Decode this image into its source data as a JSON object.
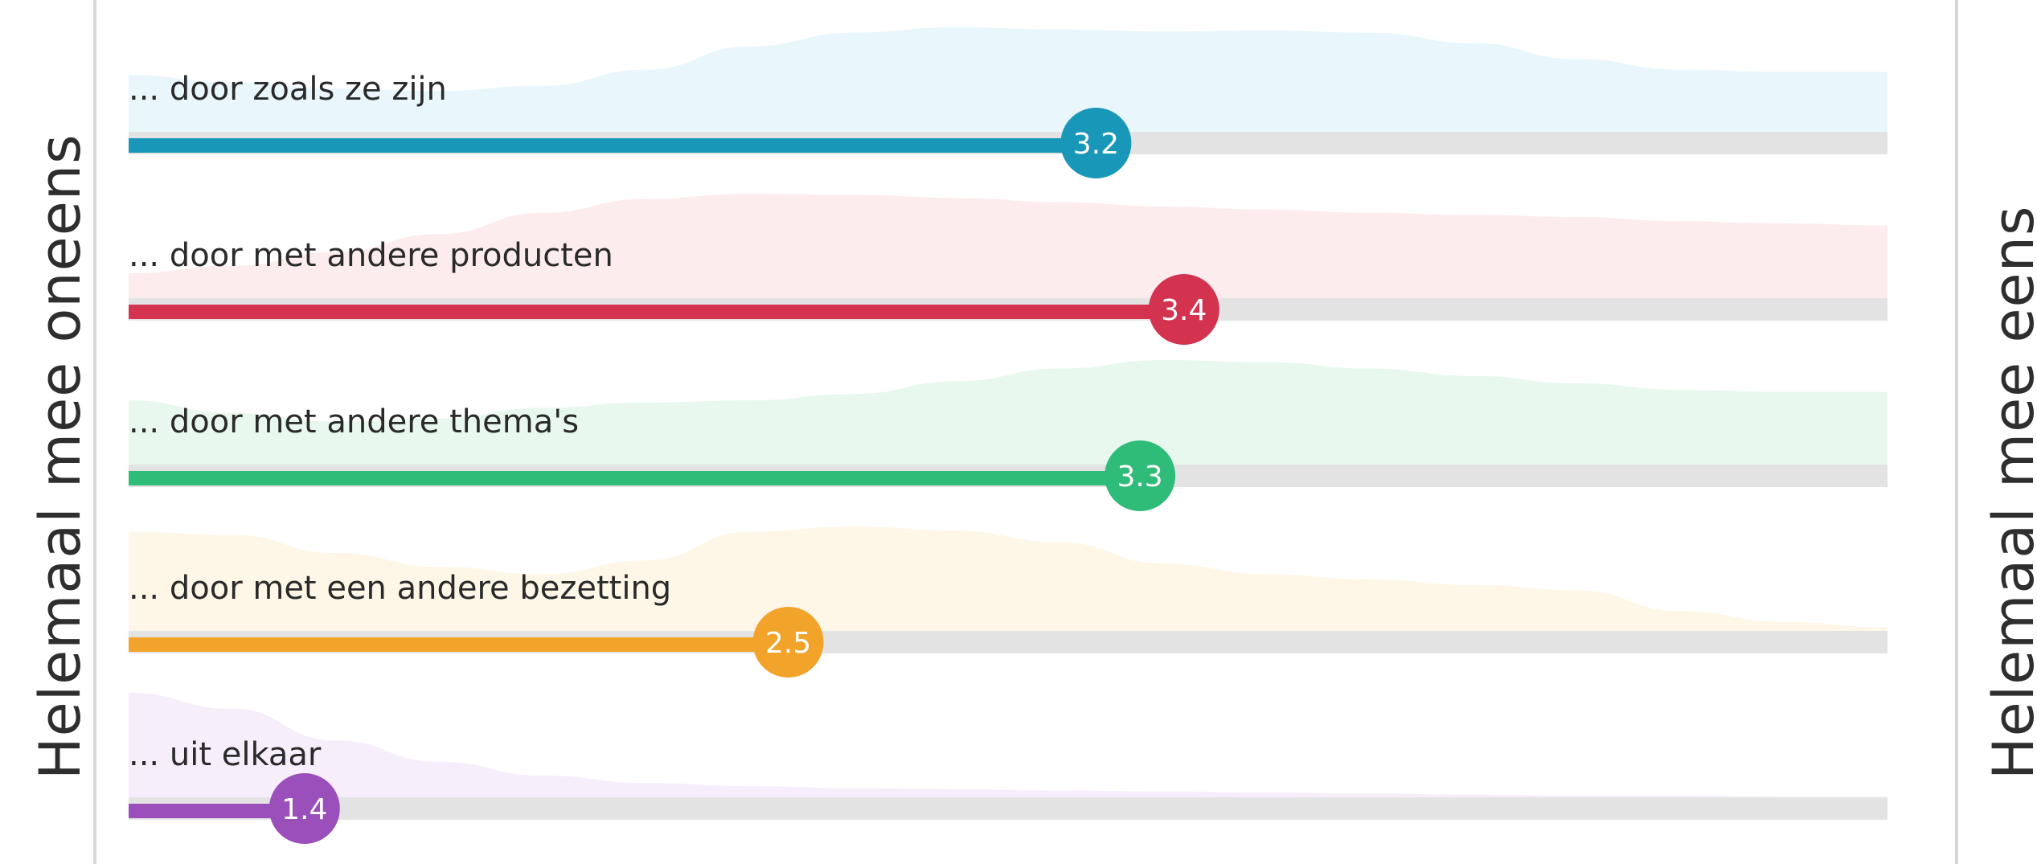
{
  "chart_data": {
    "type": "bar",
    "orientation": "horizontal",
    "scale": {
      "min": 1,
      "max": 5
    },
    "left_label": "Helemaal mee oneens",
    "right_label": "Helemaal mee eens",
    "grid": false,
    "legend": "none",
    "items": [
      {
        "label": "... door zoals ze zijn",
        "value": 3.2,
        "value_label": "3.2",
        "color": "#1997b8",
        "fill": "#e9f6fb",
        "distribution": [
          0.55,
          0.48,
          0.42,
          0.4,
          0.45,
          0.6,
          0.82,
          0.95,
          1.0,
          0.98,
          0.96,
          0.97,
          0.95,
          0.85,
          0.7,
          0.6,
          0.58,
          0.58
        ]
      },
      {
        "label": "... door met andere producten",
        "value": 3.4,
        "value_label": "3.4",
        "color": "#d43350",
        "fill": "#fdecee",
        "distribution": [
          0.25,
          0.32,
          0.45,
          0.62,
          0.82,
          0.95,
          1.0,
          0.99,
          0.96,
          0.92,
          0.88,
          0.85,
          0.82,
          0.8,
          0.78,
          0.74,
          0.72,
          0.7
        ]
      },
      {
        "label": "... door met andere thema's",
        "value": 3.3,
        "value_label": "3.3",
        "color": "#2fbb78",
        "fill": "#e9f8ef",
        "distribution": [
          0.62,
          0.5,
          0.42,
          0.45,
          0.55,
          0.6,
          0.62,
          0.68,
          0.8,
          0.92,
          1.0,
          0.98,
          0.92,
          0.85,
          0.78,
          0.72,
          0.7,
          0.7
        ]
      },
      {
        "label": "... door met een andere bezetting",
        "value": 2.5,
        "value_label": "2.5",
        "color": "#f2a32a",
        "fill": "#fef7e7",
        "distribution": [
          0.95,
          0.92,
          0.75,
          0.62,
          0.55,
          0.68,
          0.95,
          1.0,
          0.96,
          0.85,
          0.65,
          0.55,
          0.5,
          0.45,
          0.4,
          0.2,
          0.1,
          0.05
        ]
      },
      {
        "label": "... uit elkaar",
        "value": 1.4,
        "value_label": "1.4",
        "color": "#9a4fba",
        "fill": "#f6eefb",
        "distribution": [
          1.0,
          0.85,
          0.55,
          0.35,
          0.22,
          0.15,
          0.12,
          0.1,
          0.09,
          0.08,
          0.07,
          0.06,
          0.05,
          0.04,
          0.03,
          0.03,
          0.02,
          0.02
        ]
      }
    ]
  }
}
